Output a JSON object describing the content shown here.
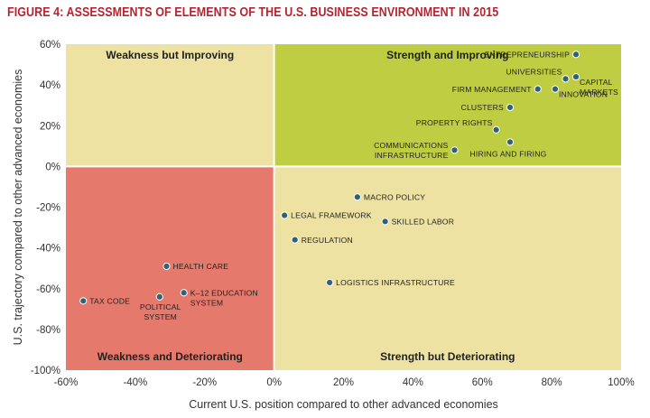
{
  "figure": {
    "title": "FIGURE 4: ASSESSMENTS OF ELEMENTS OF THE U.S. BUSINESS ENVIRONMENT IN 2015"
  },
  "chart_data": {
    "type": "scatter",
    "title": "FIGURE 4: ASSESSMENTS OF ELEMENTS OF THE U.S. BUSINESS ENVIRONMENT IN 2015",
    "xlabel": "Current U.S. position compared to other advanced economies",
    "ylabel": "U.S. trajectory compared to other advanced economies",
    "xlim": [
      -60,
      100
    ],
    "ylim": [
      -100,
      60
    ],
    "x_unit": "%",
    "y_unit": "%",
    "xticks": [
      "-60%",
      "-40%",
      "-20%",
      "0%",
      "20%",
      "40%",
      "60%",
      "80%",
      "100%"
    ],
    "yticks": [
      "60%",
      "40%",
      "20%",
      "0%",
      "-20%",
      "-40%",
      "-60%",
      "-80%",
      "-100%"
    ],
    "grid": false,
    "quadrants": [
      {
        "key": "tl",
        "label": "Weakness but Improving",
        "color": "#ede2a2"
      },
      {
        "key": "tr",
        "label": "Strength and Improving",
        "color": "#bfcd42"
      },
      {
        "key": "bl",
        "label": "Weakness and Deteriorating",
        "color": "#e5796b"
      },
      {
        "key": "br",
        "label": "Strength but Deteriorating",
        "color": "#ede2a2"
      }
    ],
    "marker_color": "#2f6371",
    "points": [
      {
        "name": "ENTREPRENEURSHIP",
        "lines": [
          "ENTREPRENEURSHIP"
        ],
        "x": 87,
        "y": 55,
        "anchor": "left"
      },
      {
        "name": "UNIVERSITIES",
        "lines": [
          "UNIVERSITIES"
        ],
        "x": 84,
        "y": 43,
        "anchor": "left-above"
      },
      {
        "name": "CAPITAL MARKETS",
        "lines": [
          "CAPITAL",
          "MARKETS"
        ],
        "x": 87,
        "y": 44,
        "anchor": "right-below"
      },
      {
        "name": "FIRM MANAGEMENT",
        "lines": [
          "FIRM MANAGEMENT"
        ],
        "x": 76,
        "y": 38,
        "anchor": "left"
      },
      {
        "name": "INNOVATION",
        "lines": [
          "INNOVATION"
        ],
        "x": 81,
        "y": 38,
        "anchor": "right-below"
      },
      {
        "name": "CLUSTERS",
        "lines": [
          "CLUSTERS"
        ],
        "x": 68,
        "y": 29,
        "anchor": "left"
      },
      {
        "name": "PROPERTY RIGHTS",
        "lines": [
          "PROPERTY RIGHTS"
        ],
        "x": 64,
        "y": 18,
        "anchor": "left-above"
      },
      {
        "name": "HIRING AND FIRING",
        "lines": [
          "HIRING AND FIRING"
        ],
        "x": 68,
        "y": 12,
        "anchor": "below-left"
      },
      {
        "name": "COMMUNICATIONS INFRASTRUCTURE",
        "lines": [
          "COMMUNICATIONS",
          "INFRASTRUCTURE"
        ],
        "x": 52,
        "y": 8,
        "anchor": "left"
      },
      {
        "name": "MACRO POLICY",
        "lines": [
          "MACRO POLICY"
        ],
        "x": 24,
        "y": -15,
        "anchor": "right"
      },
      {
        "name": "LEGAL FRAMEWORK",
        "lines": [
          "LEGAL FRAMEWORK"
        ],
        "x": 3,
        "y": -24,
        "anchor": "right"
      },
      {
        "name": "SKILLED LABOR",
        "lines": [
          "SKILLED LABOR"
        ],
        "x": 32,
        "y": -27,
        "anchor": "right"
      },
      {
        "name": "REGULATION",
        "lines": [
          "REGULATION"
        ],
        "x": 6,
        "y": -36,
        "anchor": "right"
      },
      {
        "name": "LOGISTICS INFRASTRUCTURE",
        "lines": [
          "LOGISTICS INFRASTRUCTURE"
        ],
        "x": 16,
        "y": -57,
        "anchor": "right"
      },
      {
        "name": "HEALTH CARE",
        "lines": [
          "HEALTH CARE"
        ],
        "x": -31,
        "y": -49,
        "anchor": "right"
      },
      {
        "name": "TAX CODE",
        "lines": [
          "TAX CODE"
        ],
        "x": -55,
        "y": -66,
        "anchor": "right"
      },
      {
        "name": "POLITICAL SYSTEM",
        "lines": [
          "POLITICAL",
          "SYSTEM"
        ],
        "x": -33,
        "y": -64,
        "anchor": "below"
      },
      {
        "name": "K-12 EDUCATION SYSTEM",
        "lines": [
          "K–12 EDUCATION",
          "SYSTEM"
        ],
        "x": -26,
        "y": -62,
        "anchor": "right-lines"
      }
    ]
  }
}
